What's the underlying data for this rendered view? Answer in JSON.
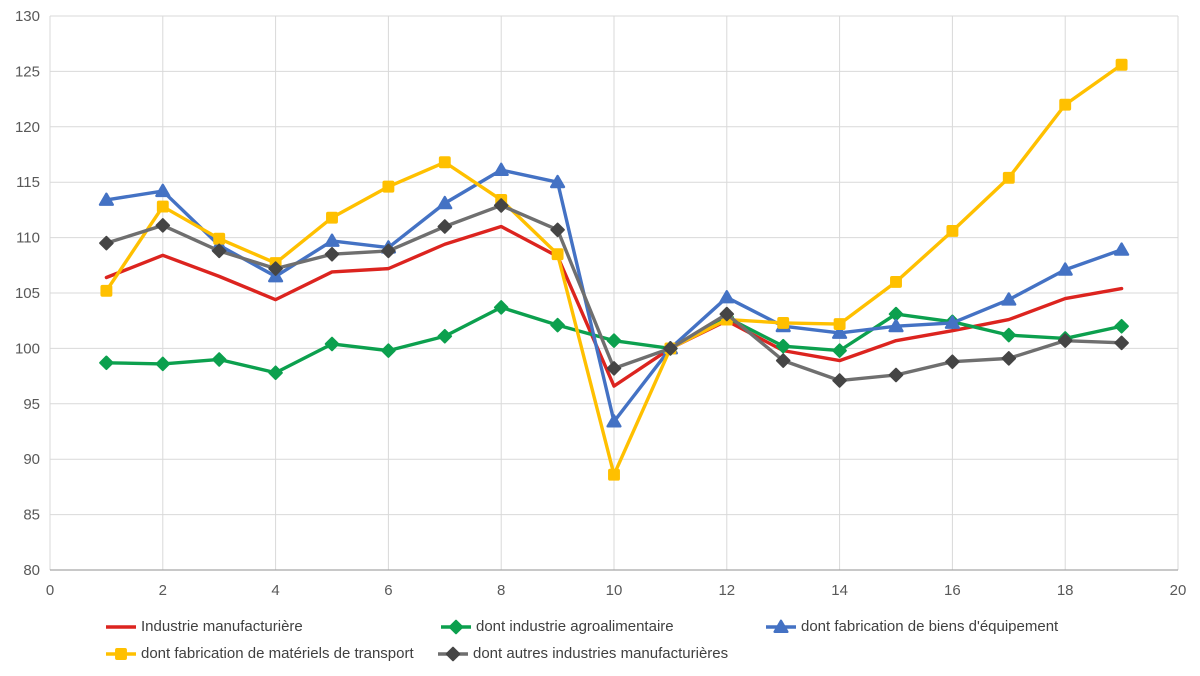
{
  "chart_data": {
    "type": "line",
    "title": "",
    "xlabel": "",
    "ylabel": "",
    "xlim": [
      0,
      20
    ],
    "ylim": [
      80,
      130
    ],
    "x_ticks": [
      "0",
      "2",
      "4",
      "6",
      "8",
      "10",
      "12",
      "14",
      "16",
      "18",
      "20"
    ],
    "x_tick_values": [
      0,
      2,
      4,
      6,
      8,
      10,
      12,
      14,
      16,
      18,
      20
    ],
    "y_ticks": [
      "80",
      "85",
      "90",
      "95",
      "100",
      "105",
      "110",
      "115",
      "120",
      "125",
      "130"
    ],
    "y_tick_values": [
      80,
      85,
      90,
      95,
      100,
      105,
      110,
      115,
      120,
      125,
      130
    ],
    "grid": true,
    "legend_position": "bottom-left",
    "x": [
      1,
      2,
      3,
      4,
      5,
      6,
      7,
      8,
      9,
      10,
      11,
      12,
      13,
      14,
      15,
      16,
      17,
      18,
      19
    ],
    "series": [
      {
        "name": "Industrie manufacturière",
        "color": "#dc241f",
        "marker": "none",
        "values": [
          106.4,
          108.4,
          106.5,
          104.4,
          106.9,
          107.2,
          109.4,
          111.0,
          108.3,
          96.6,
          100.0,
          102.5,
          99.8,
          98.9,
          100.7,
          101.6,
          102.6,
          104.5,
          105.4
        ]
      },
      {
        "name": "dont industrie agroalimentaire",
        "color": "#0ca04e",
        "marker": "diamond",
        "values": [
          98.7,
          98.6,
          99.0,
          97.8,
          100.4,
          99.8,
          101.1,
          103.7,
          102.1,
          100.7,
          100.0,
          102.8,
          100.2,
          99.8,
          103.1,
          102.4,
          101.2,
          100.9,
          102.0
        ]
      },
      {
        "name": "dont fabrication de biens d'équipement",
        "color": "#4472c4",
        "marker": "triangle",
        "values": [
          113.4,
          114.2,
          109.3,
          106.5,
          109.7,
          109.1,
          113.1,
          116.1,
          115.0,
          93.4,
          100.0,
          104.6,
          102.0,
          101.4,
          102.0,
          102.3,
          104.4,
          107.1,
          108.9
        ]
      },
      {
        "name": "dont fabrication de matériels de transport",
        "color": "#ffc000",
        "marker": "square",
        "values": [
          105.2,
          112.8,
          109.9,
          107.7,
          111.8,
          114.6,
          116.8,
          113.4,
          108.5,
          88.6,
          100.0,
          102.6,
          102.3,
          102.2,
          106.0,
          110.6,
          115.4,
          122.0,
          125.6
        ]
      },
      {
        "name": "dont autres industries manufacturières",
        "color": "#6f6f6f",
        "marker": "diamond",
        "marker_color": "#454545",
        "values": [
          109.5,
          111.1,
          108.8,
          107.2,
          108.5,
          108.8,
          111.0,
          112.9,
          110.7,
          98.2,
          100.0,
          103.1,
          98.9,
          97.1,
          97.6,
          98.8,
          99.1,
          100.7,
          100.5
        ]
      }
    ],
    "style_colors": {
      "gridline": "#d9d9d9",
      "axis_line": "#a6a6a6",
      "tick_label": "#595959",
      "legend_text": "#404040",
      "background": "#ffffff"
    }
  }
}
